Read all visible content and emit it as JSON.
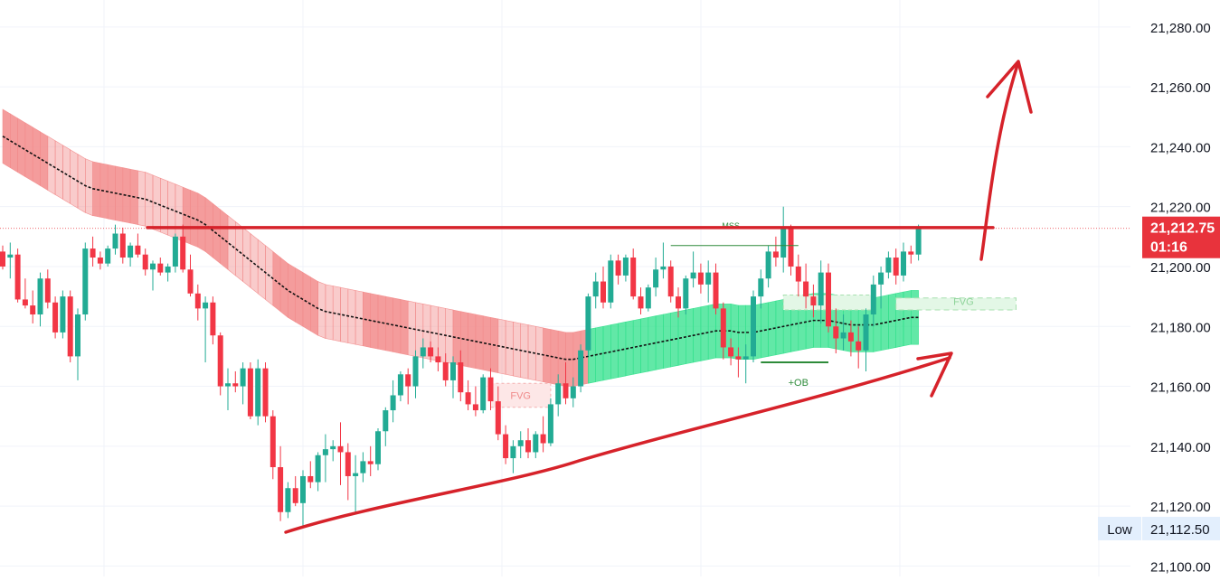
{
  "chart_data": {
    "type": "candlestick",
    "price_scale": {
      "ticks": [
        "21,280.00",
        "21,260.00",
        "21,240.00",
        "21,220.00",
        "21,200.00",
        "21,180.00",
        "21,160.00",
        "21,140.00",
        "21,120.00",
        "21,100.00"
      ],
      "tick_values": [
        21280,
        21260,
        21240,
        21220,
        21200,
        21180,
        21160,
        21140,
        21120,
        21100
      ],
      "ylim": [
        21096.5,
        21289
      ]
    },
    "last_price": {
      "value": 21212.75,
      "label": "21,212.75",
      "countdown": "01:16",
      "color": "#e8333c"
    },
    "low_marker": {
      "label": "Low",
      "value": 21112.5,
      "value_label": "21,112.50"
    },
    "resistance_level": 21213,
    "candles": [
      [
        21205,
        21207,
        21199,
        21200
      ],
      [
        21203,
        21208,
        21196,
        21204
      ],
      [
        21204,
        21206,
        21188,
        21189
      ],
      [
        21189,
        21196,
        21186,
        21187
      ],
      [
        21187,
        21192,
        21181,
        21184
      ],
      [
        21184,
        21198,
        21180,
        21196
      ],
      [
        21196,
        21199,
        21186,
        21188
      ],
      [
        21188,
        21190,
        21176,
        21178
      ],
      [
        21178,
        21192,
        21176,
        21190
      ],
      [
        21190,
        21192,
        21168,
        21170
      ],
      [
        21170,
        21186,
        21162,
        21184
      ],
      [
        21184,
        21208,
        21182,
        21206
      ],
      [
        21206,
        21210,
        21200,
        21203
      ],
      [
        21203,
        21205,
        21199,
        21201
      ],
      [
        21201,
        21207,
        21200,
        21206
      ],
      [
        21206,
        21214,
        21204,
        21211
      ],
      [
        21211,
        21213,
        21201,
        21203
      ],
      [
        21203,
        21208,
        21200,
        21207
      ],
      [
        21207,
        21211,
        21203,
        21204
      ],
      [
        21204,
        21206,
        21197,
        21199
      ],
      [
        21199,
        21202,
        21192,
        21201
      ],
      [
        21201,
        21203,
        21197,
        21198
      ],
      [
        21198,
        21201,
        21195,
        21200
      ],
      [
        21200,
        21211,
        21198,
        21210
      ],
      [
        21210,
        21214,
        21198,
        21199
      ],
      [
        21199,
        21204,
        21190,
        21191
      ],
      [
        21191,
        21194,
        21182,
        21186
      ],
      [
        21186,
        21190,
        21168,
        21188
      ],
      [
        21188,
        21190,
        21174,
        21177
      ],
      [
        21177,
        21178,
        21157,
        21160
      ],
      [
        21160,
        21166,
        21152,
        21161
      ],
      [
        21161,
        21165,
        21158,
        21160
      ],
      [
        21160,
        21168,
        21154,
        21166
      ],
      [
        21166,
        21168,
        21149,
        21150
      ],
      [
        21150,
        21169,
        21147,
        21166
      ],
      [
        21166,
        21168,
        21148,
        21150
      ],
      [
        21150,
        21152,
        21129,
        21133
      ],
      [
        21133,
        21140,
        21115,
        21118
      ],
      [
        21118,
        21128,
        21116,
        21126
      ],
      [
        21126,
        21130,
        21120,
        21121
      ],
      [
        21121,
        21132,
        21113,
        21130
      ],
      [
        21130,
        21135,
        21126,
        21128
      ],
      [
        21128,
        21138,
        21125,
        21137
      ],
      [
        21137,
        21144,
        21128,
        21139
      ],
      [
        21139,
        21142,
        21135,
        21140
      ],
      [
        21140,
        21148,
        21127,
        21138
      ],
      [
        21138,
        21141,
        21122,
        21130
      ],
      [
        21130,
        21137,
        21118,
        21131
      ],
      [
        21131,
        21138,
        21128,
        21135
      ],
      [
        21135,
        21140,
        21130,
        21134
      ],
      [
        21134,
        21146,
        21132,
        21145
      ],
      [
        21145,
        21153,
        21140,
        21152
      ],
      [
        21152,
        21162,
        21148,
        21157
      ],
      [
        21157,
        21165,
        21155,
        21164
      ],
      [
        21164,
        21166,
        21154,
        21160
      ],
      [
        21160,
        21172,
        21156,
        21170
      ],
      [
        21170,
        21176,
        21166,
        21173
      ],
      [
        21173,
        21175,
        21168,
        21170
      ],
      [
        21170,
        21173,
        21165,
        21168
      ],
      [
        21168,
        21171,
        21160,
        21162
      ],
      [
        21162,
        21170,
        21156,
        21168
      ],
      [
        21168,
        21172,
        21155,
        21158
      ],
      [
        21158,
        21162,
        21152,
        21154
      ],
      [
        21154,
        21160,
        21150,
        21152
      ],
      [
        21152,
        21164,
        21151,
        21163
      ],
      [
        21163,
        21166,
        21152,
        21155
      ],
      [
        21155,
        21160,
        21142,
        21144
      ],
      [
        21144,
        21147,
        21134,
        21136
      ],
      [
        21136,
        21142,
        21131,
        21140
      ],
      [
        21140,
        21145,
        21136,
        21142
      ],
      [
        21142,
        21146,
        21136,
        21138
      ],
      [
        21138,
        21145,
        21136,
        21144
      ],
      [
        21144,
        21150,
        21138,
        21141
      ],
      [
        21141,
        21156,
        21140,
        21154
      ],
      [
        21154,
        21164,
        21150,
        21161
      ],
      [
        21161,
        21168,
        21154,
        21156
      ],
      [
        21156,
        21163,
        21153,
        21160
      ],
      [
        21160,
        21174,
        21158,
        21172
      ],
      [
        21172,
        21191,
        21170,
        21190
      ],
      [
        21190,
        21198,
        21186,
        21195
      ],
      [
        21195,
        21200,
        21186,
        21188
      ],
      [
        21188,
        21204,
        21186,
        21202
      ],
      [
        21202,
        21204,
        21194,
        21197
      ],
      [
        21197,
        21204,
        21195,
        21203
      ],
      [
        21203,
        21206,
        21189,
        21190
      ],
      [
        21190,
        21193,
        21184,
        21186
      ],
      [
        21186,
        21194,
        21185,
        21193
      ],
      [
        21193,
        21203,
        21190,
        21199
      ],
      [
        21199,
        21208,
        21196,
        21200
      ],
      [
        21200,
        21202,
        21188,
        21190
      ],
      [
        21190,
        21193,
        21183,
        21186
      ],
      [
        21186,
        21197,
        21184,
        21196
      ],
      [
        21196,
        21205,
        21193,
        21198
      ],
      [
        21198,
        21201,
        21191,
        21194
      ],
      [
        21194,
        21202,
        21188,
        21198
      ],
      [
        21198,
        21201,
        21184,
        21186
      ],
      [
        21186,
        21188,
        21169,
        21173
      ],
      [
        21173,
        21176,
        21167,
        21170
      ],
      [
        21170,
        21173,
        21163,
        21169
      ],
      [
        21169,
        21174,
        21161,
        21170
      ],
      [
        21170,
        21192,
        21168,
        21190
      ],
      [
        21190,
        21199,
        21186,
        21196
      ],
      [
        21196,
        21207,
        21193,
        21205
      ],
      [
        21205,
        21210,
        21200,
        21203
      ],
      [
        21203,
        21220,
        21198,
        21213
      ],
      [
        21213,
        21214,
        21197,
        21200
      ],
      [
        21200,
        21204,
        21190,
        21195
      ],
      [
        21195,
        21201,
        21186,
        21190
      ],
      [
        21190,
        21194,
        21183,
        21187
      ],
      [
        21187,
        21202,
        21181,
        21198
      ],
      [
        21198,
        21201,
        21178,
        21180
      ],
      [
        21180,
        21186,
        21171,
        21176
      ],
      [
        21176,
        21184,
        21172,
        21178
      ],
      [
        21178,
        21182,
        21170,
        21175
      ],
      [
        21175,
        21180,
        21166,
        21172
      ],
      [
        21172,
        21186,
        21165,
        21184
      ],
      [
        21184,
        21197,
        21180,
        21194
      ],
      [
        21194,
        21200,
        21186,
        21198
      ],
      [
        21198,
        21205,
        21196,
        21203
      ],
      [
        21203,
        21206,
        21194,
        21197
      ],
      [
        21197,
        21208,
        21195,
        21205
      ],
      [
        21205,
        21207,
        21201,
        21204
      ],
      [
        21204,
        21214,
        21202,
        21212.75
      ]
    ],
    "moving_average": [
      21243.5,
      21242,
      21240.5,
      21239,
      21237.5,
      21236,
      21234.5,
      21233,
      21231.5,
      21230,
      21228.5,
      21227,
      21226,
      21225.5,
      21225,
      21224.5,
      21224,
      21223.5,
      21223,
      21222.5,
      21221.5,
      21220.5,
      21219.5,
      21218.5,
      21217.5,
      21216.5,
      21215.5,
      21214,
      21212,
      21210,
      21208,
      21206,
      21204,
      21202,
      21200,
      21198,
      21196,
      21194,
      21192,
      21190.5,
      21189,
      21187.5,
      21186,
      21185,
      21184.5,
      21184,
      21183.5,
      21183,
      21182.5,
      21182,
      21181.5,
      21181,
      21180.5,
      21180,
      21179.5,
      21179,
      21178.5,
      21178,
      21177.5,
      21177,
      21176.5,
      21176,
      21175.5,
      21175,
      21174.5,
      21174,
      21173.5,
      21173,
      21172.5,
      21172,
      21171.5,
      21171,
      21170.5,
      21170,
      21169.5,
      21169,
      21169,
      21169.5,
      21170,
      21170.5,
      21171,
      21171.5,
      21172,
      21172.5,
      21173,
      21173.5,
      21174,
      21174.5,
      21175,
      21175.5,
      21176,
      21176.5,
      21177,
      21177.5,
      21178,
      21178.5,
      21178.5,
      21178.5,
      21178,
      21178,
      21178,
      21178.5,
      21179,
      21179.5,
      21180,
      21180.5,
      21181,
      21181.5,
      21182,
      21182,
      21182,
      21181.5,
      21181,
      21180.5,
      21180.5,
      21180.5,
      21180.5,
      21181,
      21181.5,
      21182,
      21182.5,
      21183,
      21183
    ],
    "band_half_width": 9,
    "annotations": [
      {
        "text": "MSS",
        "level": 21207,
        "color": "#2e8b3a"
      },
      {
        "text": "+OB",
        "level": 21168,
        "color": "#2e8b3a"
      },
      {
        "text": "FVG",
        "level": 21157,
        "color": "#f08a8a"
      },
      {
        "text": "FVG",
        "level": 21188,
        "color": "#8fd39a"
      }
    ],
    "colors": {
      "up": "#22ab94",
      "down": "#f23645",
      "band_down": "#f28b8b",
      "band_up": "#2ee08a",
      "drawing": "#d6222a"
    },
    "grid": true
  }
}
